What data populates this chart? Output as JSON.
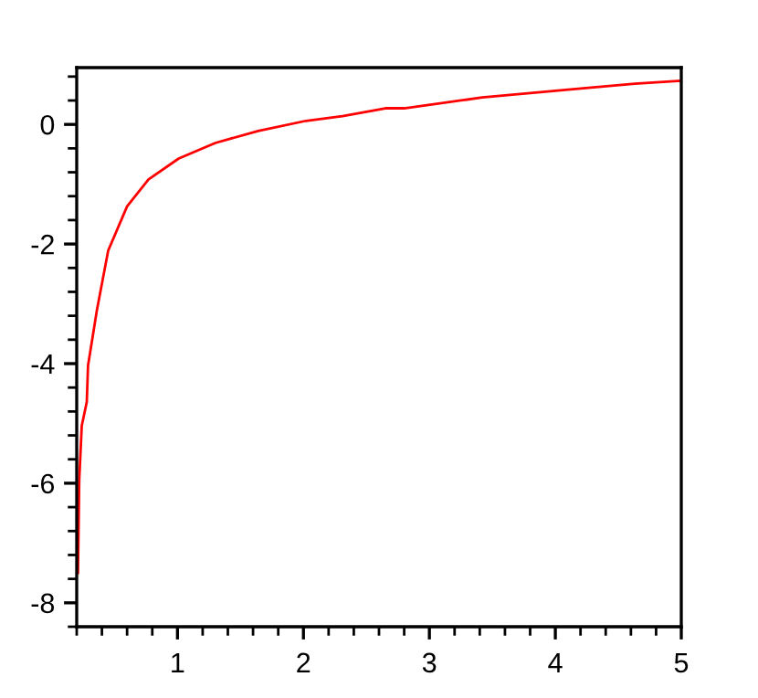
{
  "chart_data": {
    "type": "line",
    "x": [
      0.21,
      0.22,
      0.24,
      0.28,
      0.29,
      0.36,
      0.45,
      0.6,
      0.77,
      1.01,
      1.3,
      1.64,
      2.02,
      2.31,
      2.65,
      2.8,
      3.42,
      4.1,
      4.63,
      5.0
    ],
    "series": [
      {
        "color": "#ff0000",
        "values": [
          -7.5,
          -5.95,
          -5.04,
          -4.64,
          -4.03,
          -3.11,
          -2.11,
          -1.37,
          -0.92,
          -0.57,
          -0.31,
          -0.11,
          0.06,
          0.14,
          0.27,
          0.27,
          0.45,
          0.58,
          0.68,
          0.73
        ]
      }
    ],
    "xlim": [
      0.2,
      5
    ],
    "ylim": [
      -8.4,
      0.95
    ],
    "xticks": [
      {
        "value": 0.2,
        "label": null
      },
      {
        "value": 0.4,
        "label": null
      },
      {
        "value": 0.6,
        "label": null
      },
      {
        "value": 0.8,
        "label": null
      },
      1,
      {
        "value": 1.2,
        "label": null
      },
      {
        "value": 1.4,
        "label": null
      },
      {
        "value": 1.6,
        "label": null
      },
      {
        "value": 1.8,
        "label": null
      },
      2,
      {
        "value": 2.2,
        "label": null
      },
      {
        "value": 2.4,
        "label": null
      },
      {
        "value": 2.6,
        "label": null
      },
      {
        "value": 2.8,
        "label": null
      },
      3,
      {
        "value": 3.2,
        "label": null
      },
      {
        "value": 3.4,
        "label": null
      },
      {
        "value": 3.6,
        "label": null
      },
      {
        "value": 3.8,
        "label": null
      },
      4,
      {
        "value": 4.2,
        "label": null
      },
      {
        "value": 4.4,
        "label": null
      },
      {
        "value": 4.6,
        "label": null
      },
      {
        "value": 4.8,
        "label": null
      },
      5
    ],
    "yticks": [
      {
        "value": -8.4,
        "label": null
      },
      -8,
      {
        "value": -7.6,
        "label": null
      },
      {
        "value": -7.2,
        "label": null
      },
      {
        "value": -6.8,
        "label": null
      },
      {
        "value": -6.4,
        "label": null
      },
      -6,
      {
        "value": -5.6,
        "label": null
      },
      {
        "value": -5.2,
        "label": null
      },
      {
        "value": -4.8,
        "label": null
      },
      {
        "value": -4.4,
        "label": null
      },
      -4,
      {
        "value": -3.6,
        "label": null
      },
      {
        "value": -3.2,
        "label": null
      },
      {
        "value": -2.8,
        "label": null
      },
      {
        "value": -2.4,
        "label": null
      },
      -2,
      {
        "value": -1.6,
        "label": null
      },
      {
        "value": -1.2,
        "label": null
      },
      {
        "value": -0.8,
        "label": null
      },
      {
        "value": -0.4,
        "label": null
      },
      0,
      {
        "value": 0.4,
        "label": null
      },
      {
        "value": 0.8,
        "label": null
      }
    ],
    "grid": false,
    "legend": false,
    "line_style": "solid"
  }
}
